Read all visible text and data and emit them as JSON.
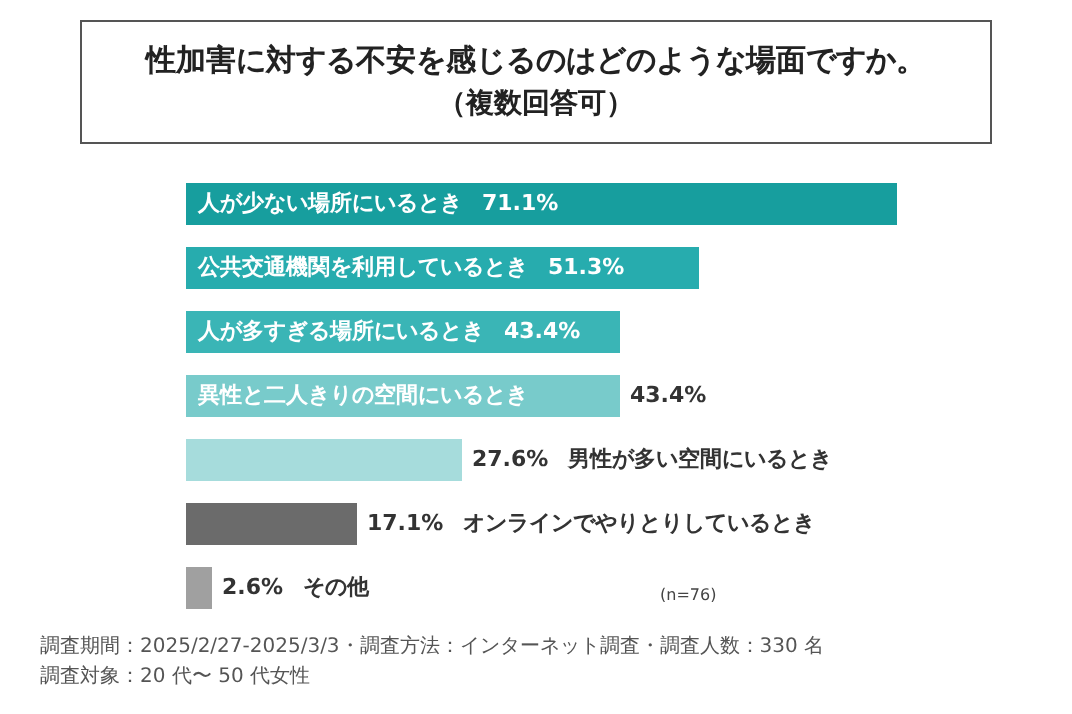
{
  "chart_data": {
    "type": "bar",
    "orientation": "horizontal",
    "title": "性加害に対する不安を感じるのはどのような場面ですか。",
    "subtitle": "（複数回答可）",
    "categories": [
      "人が少ない場所にいるとき",
      "公共交通機関を利用しているとき",
      "人が多すぎる場所にいるとき",
      "異性と二人きりの空間にいるとき",
      "男性が多い空間にいるとき",
      "オンラインでやりとりしているとき",
      "その他"
    ],
    "values": [
      71.1,
      51.3,
      43.4,
      43.4,
      27.6,
      17.1,
      2.6
    ],
    "value_labels": [
      "71.1%",
      "51.3%",
      "43.4%",
      "43.4%",
      "27.6%",
      "17.1%",
      "2.6%"
    ],
    "colors": [
      "#179e9e",
      "#27acae",
      "#3ab5b6",
      "#78cbcb",
      "#a6dcdc",
      "#6b6b6b",
      "#a0a0a0"
    ],
    "tick_labels": false,
    "annotations": [
      "(n=76)",
      "調査期間：2025/2/27-2025/3/3・調査方法：インターネット調査・調査人数：330 名",
      "調査対象：20 代〜 50 代女性"
    ]
  }
}
